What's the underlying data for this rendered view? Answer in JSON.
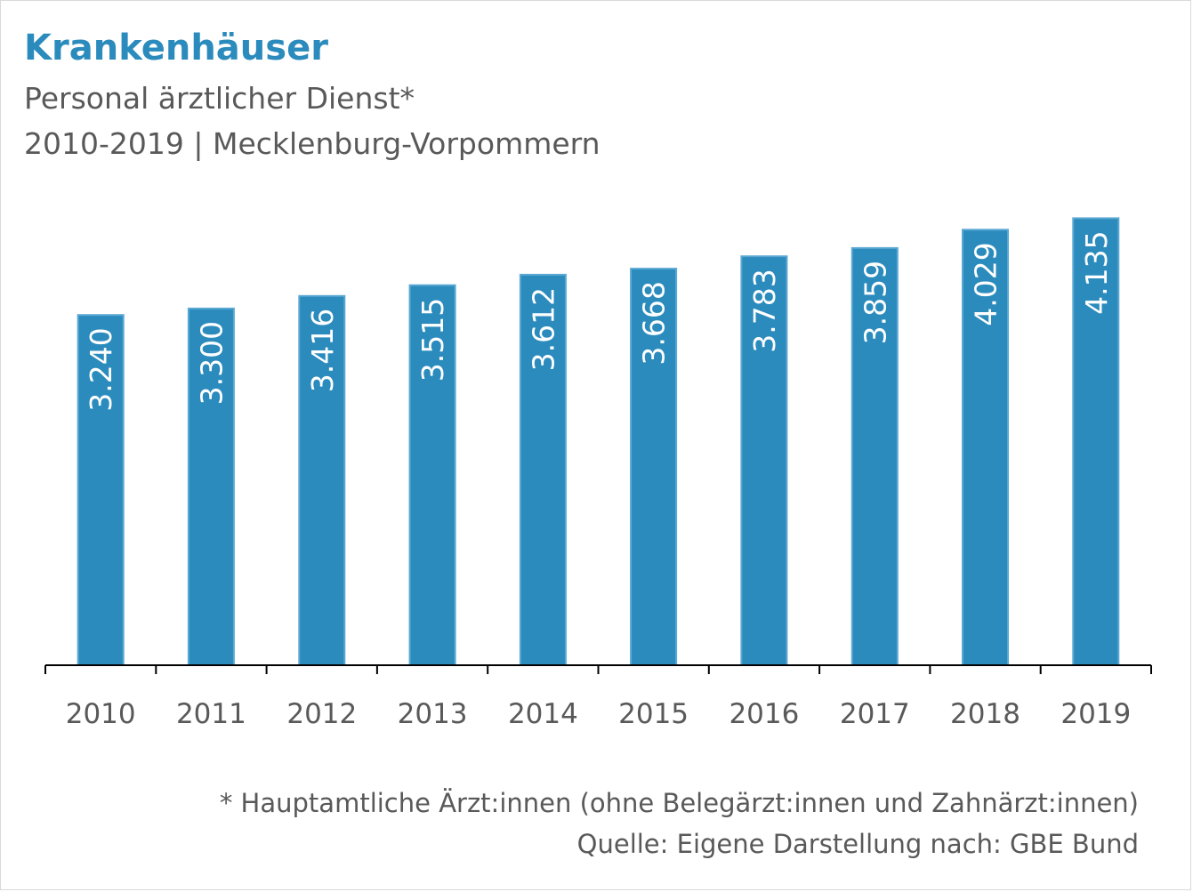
{
  "header": {
    "title": "Krankenhäuser",
    "subtitle": "Personal ärztlicher Dienst*",
    "subtitle2": "2010-2019 | Mecklenburg-Vorpommern"
  },
  "footer": {
    "note": "* Hauptamtliche Ärzt:innen (ohne Belegärzt:innen und Zahnärzt:innen)",
    "source": "Quelle: Eigene Darstellung nach: GBE Bund"
  },
  "colors": {
    "bar": "#2b8bbd",
    "bar_edge": "#5aa8d3",
    "title": "#2b8bbd",
    "text": "#595959",
    "axis": "#000000"
  },
  "chart_data": {
    "type": "bar",
    "categories": [
      "2010",
      "2011",
      "2012",
      "2013",
      "2014",
      "2015",
      "2016",
      "2017",
      "2018",
      "2019"
    ],
    "values": [
      3240,
      3300,
      3416,
      3515,
      3612,
      3668,
      3783,
      3859,
      4029,
      4135
    ],
    "data_labels": [
      "3.240",
      "3.300",
      "3.416",
      "3.515",
      "3.612",
      "3.668",
      "3.783",
      "3.859",
      "4.029",
      "4.135"
    ],
    "title": "Krankenhäuser",
    "subtitle": "Personal ärztlicher Dienst*",
    "xlabel": "",
    "ylabel": "",
    "ylim": [
      0,
      4500
    ],
    "grid": false,
    "legend": "none",
    "label_orientation": "vertical"
  }
}
